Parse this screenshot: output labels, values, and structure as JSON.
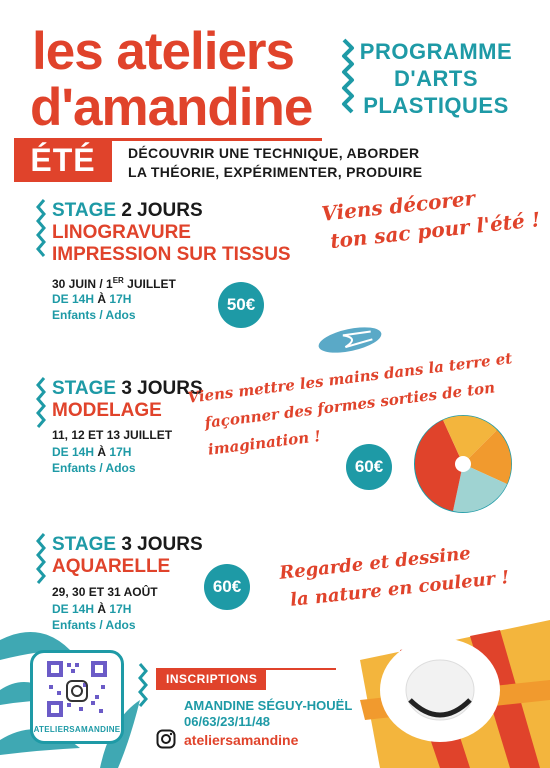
{
  "header": {
    "title_line1": "les ateliers",
    "title_line2": "d'amandine",
    "program": [
      "PROGRAMME",
      "D'ARTS",
      "PLASTIQUES"
    ]
  },
  "season": {
    "label": "ÉTÉ",
    "description": [
      "DÉCOUVRIR UNE TECHNIQUE, ABORDER",
      "LA THÉORIE, EXPÉRIMENTER, PRODUIRE"
    ]
  },
  "stages": [
    {
      "prefix": "STAGE",
      "duration": "2 JOURS",
      "subtitles": [
        "LINOGRAVURE",
        "IMPRESSION SUR TISSUS"
      ],
      "date_main": "30 JUIN / 1",
      "date_sup": "ER",
      "date_end": " JUILLET",
      "time_from": "DE 14H",
      "time_sep": "À",
      "time_to": "17H",
      "audience": "Enfants / Ados",
      "price": "50€",
      "slogan": [
        "Viens décorer",
        "ton sac pour l'été !"
      ]
    },
    {
      "prefix": "STAGE",
      "duration": "3 JOURS",
      "subtitles": [
        "MODELAGE"
      ],
      "date": "11, 12 ET 13 JUILLET",
      "time_from": "DE 14H",
      "time_sep": "À",
      "time_to": "17H",
      "audience": "Enfants / Ados",
      "price": "60€",
      "slogan": [
        "Viens mettre les mains dans la terre et",
        "façonner des formes sorties de ton",
        "imagination !"
      ]
    },
    {
      "prefix": "STAGE",
      "duration": "3 JOURS",
      "subtitles": [
        "AQUARELLE"
      ],
      "date": "29, 30 ET 31 AOÛT",
      "time_from": "DE 14H",
      "time_sep": "À",
      "time_to": "17H",
      "audience": "Enfants / Ados",
      "price": "60€",
      "slogan": [
        "Regarde et dessine",
        "la nature en couleur !"
      ]
    }
  ],
  "inscriptions": {
    "label": "INSCRIPTIONS",
    "name": "AMANDINE SÉGUY-HOUËL",
    "phone": "06/63/23/11/48",
    "instagram": "ateliersamandine",
    "qr_label": "ATELIERSAMANDINE"
  },
  "colors": {
    "red": "#e0432b",
    "teal": "#1e9aa6",
    "orange": "#f19a2e",
    "yellow": "#f3b53d"
  },
  "icons": [
    "zigzag-icon",
    "flip-flop-icon",
    "beach-ball-icon",
    "sun-hat-icon",
    "palm-leaf-icon",
    "instagram-icon",
    "qr-code-icon"
  ]
}
